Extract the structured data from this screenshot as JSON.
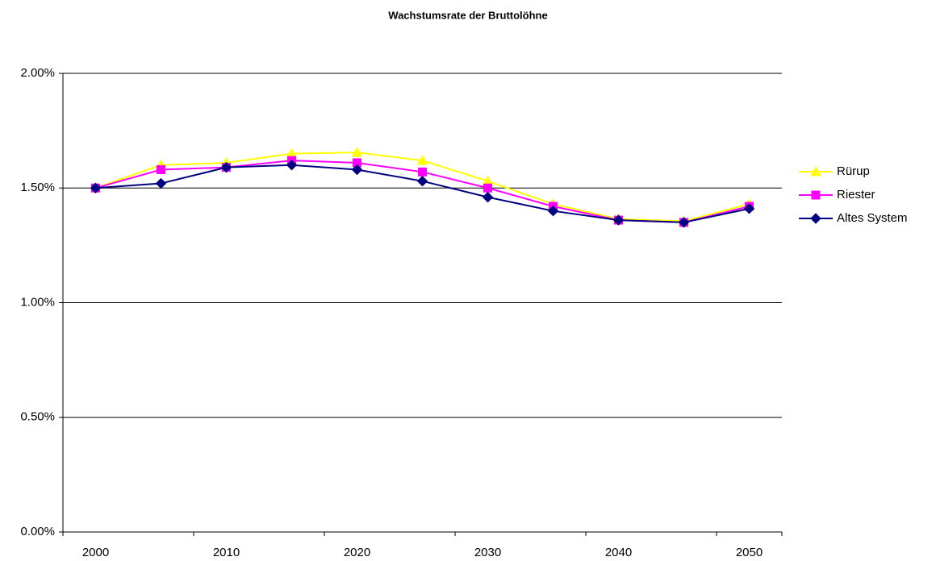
{
  "chart_data": {
    "type": "line",
    "title": "Wachstumsrate der Bruttolöhne",
    "categories": [
      "2000",
      null,
      "2010",
      null,
      "2020",
      null,
      "2030",
      null,
      "2040",
      null,
      "2050"
    ],
    "series": [
      {
        "name": "Rürup",
        "color": "#ffff00",
        "marker": "triangle",
        "values": [
          1.5,
          1.6,
          1.61,
          1.65,
          1.655,
          1.62,
          1.53,
          1.43,
          1.365,
          1.355,
          1.43
        ]
      },
      {
        "name": "Riester",
        "color": "#ff00ff",
        "marker": "square",
        "values": [
          1.5,
          1.58,
          1.59,
          1.62,
          1.61,
          1.57,
          1.5,
          1.42,
          1.36,
          1.35,
          1.42
        ]
      },
      {
        "name": "Altes System",
        "color": "#000080",
        "marker": "diamond",
        "values": [
          1.5,
          1.52,
          1.59,
          1.6,
          1.58,
          1.53,
          1.46,
          1.4,
          1.36,
          1.35,
          1.41
        ]
      }
    ],
    "ylim": [
      0,
      2
    ],
    "yticks": [
      {
        "value": 0,
        "label": "0.00%"
      },
      {
        "value": 0.5,
        "label": "0.50%"
      },
      {
        "value": 1,
        "label": "1.00%"
      },
      {
        "value": 1.5,
        "label": "1.50%"
      },
      {
        "value": 2,
        "label": "2.00%"
      }
    ],
    "grid": true,
    "legend": "right"
  }
}
